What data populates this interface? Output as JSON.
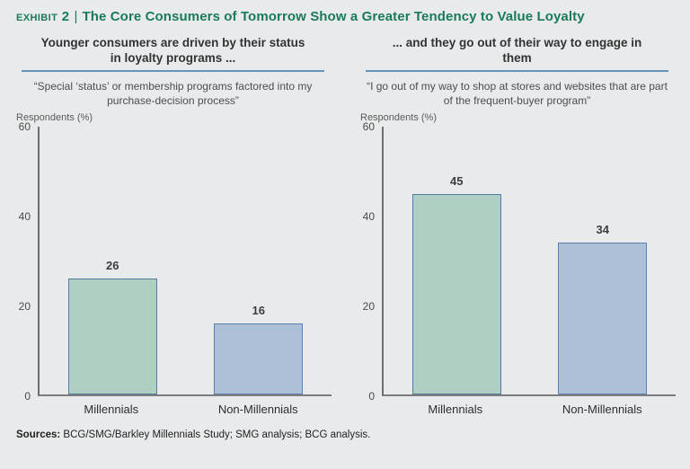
{
  "page": {
    "background": "#e9eaeb",
    "accent_green": "#1a7a5a",
    "divider_blue": "#6596b8"
  },
  "header": {
    "exhibit_label": "Exhibit 2",
    "separator": "|",
    "title": "The Core Consumers of Tomorrow Show a Greater Tendency to Value Loyalty"
  },
  "footer": {
    "sources_label": "Sources:",
    "sources_text": " BCG/SMG/Barkley Millennials Study; SMG analysis; BCG analysis."
  },
  "chart_data": [
    {
      "type": "bar",
      "panel_title": "Younger consumers are driven by their status in loyalty programs ...",
      "subtitle": "“Special ‘status’ or membership programs factored into my purchase-decision process”",
      "ylabel": "Respondents (%)",
      "categories": [
        "Millennials",
        "Non-Millennials"
      ],
      "values": [
        26,
        16
      ],
      "ylim": [
        0,
        60
      ],
      "yticks": [
        60,
        40,
        20,
        0
      ],
      "grid": false,
      "legend": "none",
      "bar_fills": [
        "#aecfc2",
        "#adc0d8"
      ],
      "bar_borders": [
        "#527e9b",
        "#5a82ac"
      ]
    },
    {
      "type": "bar",
      "panel_title": "... and they go out of their way to engage in them",
      "subtitle": "“I go out of my way to shop at stores and websites that are part of the frequent-buyer program”",
      "ylabel": "Respondents (%)",
      "categories": [
        "Millennials",
        "Non-Millennials"
      ],
      "values": [
        45,
        34
      ],
      "ylim": [
        0,
        60
      ],
      "yticks": [
        60,
        40,
        20,
        0
      ],
      "grid": false,
      "legend": "none",
      "bar_fills": [
        "#aecfc2",
        "#adc0d8"
      ],
      "bar_borders": [
        "#527e9b",
        "#5a82ac"
      ]
    }
  ]
}
